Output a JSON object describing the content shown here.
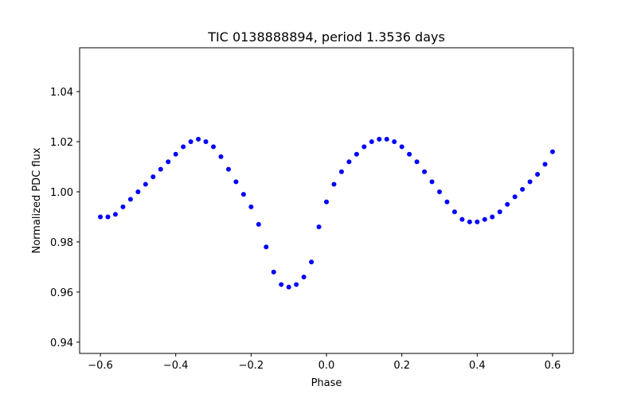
{
  "chart_data": {
    "type": "scatter",
    "title": "TIC 0138888894, period 1.3536 days",
    "xlabel": "Phase",
    "ylabel": "Normalized PDC flux",
    "xlim": [
      -0.655,
      0.655
    ],
    "ylim": [
      0.9355,
      1.0575
    ],
    "xticks": [
      -0.6,
      -0.4,
      -0.2,
      0.0,
      0.2,
      0.4,
      0.6
    ],
    "xtick_labels": [
      "−0.6",
      "−0.4",
      "−0.2",
      "0.0",
      "0.2",
      "0.4",
      "0.6"
    ],
    "yticks": [
      0.94,
      0.96,
      0.98,
      1.0,
      1.02,
      1.04
    ],
    "ytick_labels": [
      "0.94",
      "0.96",
      "0.98",
      "1.00",
      "1.02",
      "1.04"
    ],
    "grid": false,
    "color": "#0000ff",
    "series": [
      {
        "x": [
          -0.6,
          -0.58,
          -0.56,
          -0.54,
          -0.52,
          -0.5,
          -0.48,
          -0.46,
          -0.44,
          -0.42,
          -0.4,
          -0.38,
          -0.36,
          -0.34,
          -0.32,
          -0.3,
          -0.28,
          -0.26,
          -0.24,
          -0.22,
          -0.2,
          -0.18,
          -0.16,
          -0.14,
          -0.12,
          -0.1,
          -0.08,
          -0.06,
          -0.04,
          -0.02,
          0.0,
          0.02,
          0.04,
          0.06,
          0.08,
          0.1,
          0.12,
          0.14,
          0.16,
          0.18,
          0.2,
          0.22,
          0.24,
          0.26,
          0.28,
          0.3,
          0.32,
          0.34,
          0.36,
          0.38,
          0.4,
          0.42,
          0.44,
          0.46,
          0.48,
          0.5,
          0.52,
          0.54,
          0.56,
          0.58,
          0.6
        ],
        "y": [
          0.99,
          0.99,
          0.991,
          0.994,
          0.997,
          1.0,
          1.003,
          1.006,
          1.009,
          1.012,
          1.015,
          1.018,
          1.02,
          1.021,
          1.02,
          1.018,
          1.014,
          1.009,
          1.004,
          0.999,
          0.994,
          0.987,
          0.978,
          0.968,
          0.963,
          0.962,
          0.963,
          0.966,
          0.972,
          0.986,
          0.996,
          1.003,
          1.008,
          1.012,
          1.015,
          1.018,
          1.02,
          1.021,
          1.021,
          1.02,
          1.018,
          1.015,
          1.012,
          1.008,
          1.004,
          1.0,
          0.996,
          0.992,
          0.989,
          0.988,
          0.988,
          0.989,
          0.99,
          0.992,
          0.995,
          0.998,
          1.001,
          1.004,
          1.007,
          1.011,
          1.016
        ]
      }
    ]
  }
}
